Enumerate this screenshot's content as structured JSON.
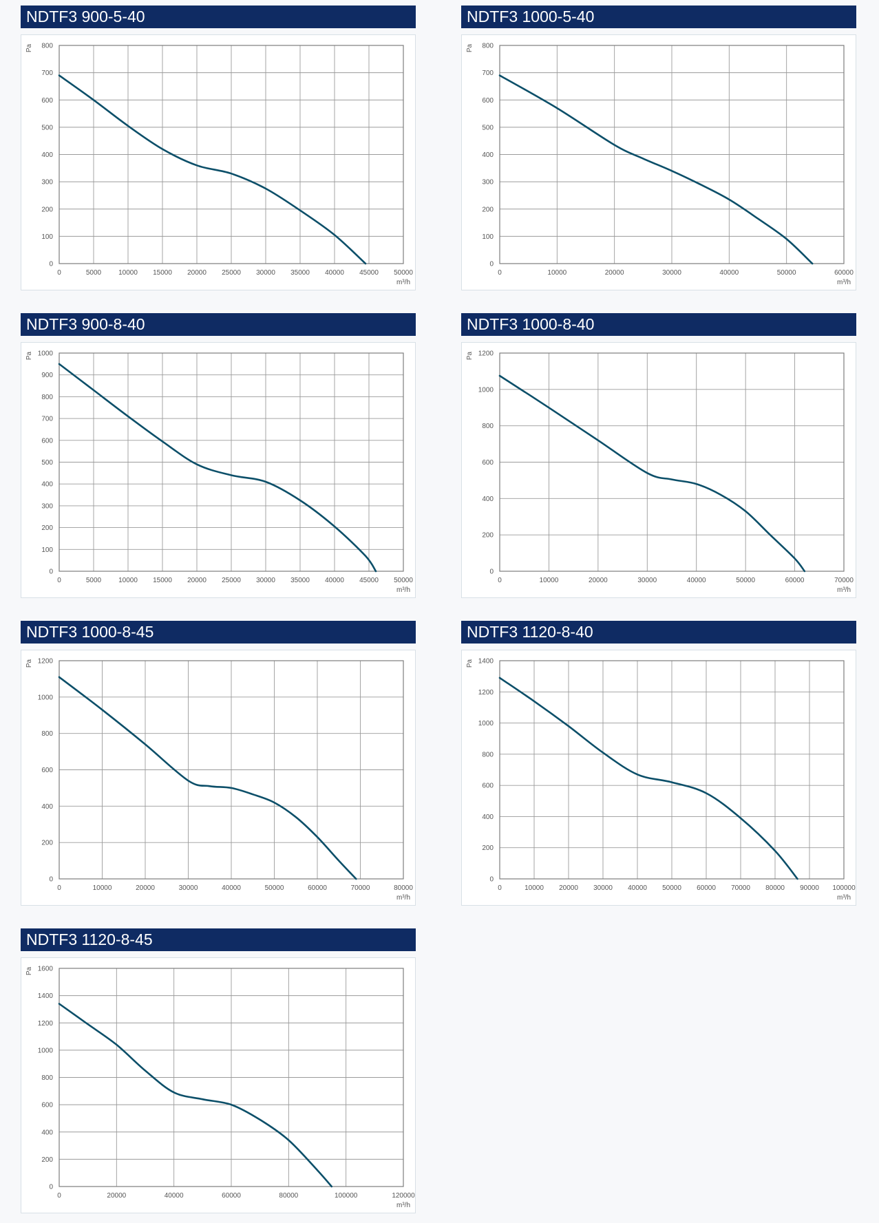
{
  "colors": {
    "header_bg": "#0f2b63",
    "curve": "#0c4f69",
    "grid": "#9a9a9a",
    "tick_text": "#555555"
  },
  "chart_data": [
    {
      "type": "line",
      "title": "NDTF3 900-5-40",
      "ylabel": "Pa",
      "xunit": "m³/h",
      "xlim": [
        0,
        50000
      ],
      "xticks": [
        0,
        5000,
        10000,
        15000,
        20000,
        25000,
        30000,
        35000,
        40000,
        45000,
        50000
      ],
      "ylim": [
        0,
        800
      ],
      "yticks": [
        0,
        100,
        200,
        300,
        400,
        500,
        600,
        700,
        800
      ],
      "grid": true,
      "series": [
        {
          "x": [
            0,
            5000,
            10000,
            15000,
            20000,
            25000,
            30000,
            35000,
            40000,
            44500
          ],
          "y": [
            690,
            600,
            505,
            420,
            360,
            330,
            275,
            195,
            105,
            0
          ]
        }
      ]
    },
    {
      "type": "line",
      "title": "NDTF3 1000-5-40",
      "ylabel": "Pa",
      "xunit": "m³/h",
      "xlim": [
        0,
        60000
      ],
      "xticks": [
        0,
        10000,
        20000,
        30000,
        40000,
        50000,
        60000
      ],
      "ylim": [
        0,
        800
      ],
      "yticks": [
        0,
        100,
        200,
        300,
        400,
        500,
        600,
        700,
        800
      ],
      "grid": true,
      "series": [
        {
          "x": [
            0,
            10000,
            20000,
            25000,
            30000,
            35000,
            40000,
            45000,
            50000,
            54500
          ],
          "y": [
            690,
            570,
            435,
            385,
            340,
            290,
            235,
            165,
            90,
            0
          ]
        }
      ]
    },
    {
      "type": "line",
      "title": "NDTF3 900-8-40",
      "ylabel": "Pa",
      "xunit": "m³/h",
      "xlim": [
        0,
        50000
      ],
      "xticks": [
        0,
        5000,
        10000,
        15000,
        20000,
        25000,
        30000,
        35000,
        40000,
        45000,
        50000
      ],
      "ylim": [
        0,
        1000
      ],
      "yticks": [
        0,
        100,
        200,
        300,
        400,
        500,
        600,
        700,
        800,
        900,
        1000
      ],
      "grid": true,
      "series": [
        {
          "x": [
            0,
            5000,
            10000,
            15000,
            20000,
            25000,
            30000,
            35000,
            40000,
            44500,
            46000
          ],
          "y": [
            950,
            830,
            710,
            595,
            490,
            440,
            410,
            325,
            205,
            70,
            0
          ]
        }
      ]
    },
    {
      "type": "line",
      "title": "NDTF3 1000-8-40",
      "ylabel": "Pa",
      "xunit": "m³/h",
      "xlim": [
        0,
        70000
      ],
      "xticks": [
        0,
        10000,
        20000,
        30000,
        40000,
        50000,
        60000,
        70000
      ],
      "ylim": [
        0,
        1200
      ],
      "yticks": [
        0,
        200,
        400,
        600,
        800,
        1000,
        1200
      ],
      "grid": true,
      "series": [
        {
          "x": [
            0,
            10000,
            20000,
            30000,
            35000,
            40000,
            45000,
            50000,
            55000,
            60000,
            62000
          ],
          "y": [
            1075,
            900,
            720,
            540,
            505,
            480,
            420,
            330,
            200,
            70,
            0
          ]
        }
      ]
    },
    {
      "type": "line",
      "title": "NDTF3 1000-8-45",
      "ylabel": "Pa",
      "xunit": "m³/h",
      "xlim": [
        0,
        80000
      ],
      "xticks": [
        0,
        10000,
        20000,
        30000,
        40000,
        50000,
        60000,
        70000,
        80000
      ],
      "ylim": [
        0,
        1200
      ],
      "yticks": [
        0,
        200,
        400,
        600,
        800,
        1000,
        1200
      ],
      "grid": true,
      "series": [
        {
          "x": [
            0,
            10000,
            20000,
            30000,
            35000,
            40000,
            45000,
            50000,
            55000,
            60000,
            65000,
            69000
          ],
          "y": [
            1110,
            930,
            740,
            540,
            510,
            500,
            465,
            420,
            340,
            230,
            100,
            0
          ]
        }
      ]
    },
    {
      "type": "line",
      "title": "NDTF3 1120-8-40",
      "ylabel": "Pa",
      "xunit": "m³/h",
      "xlim": [
        0,
        100000
      ],
      "xticks": [
        0,
        10000,
        20000,
        30000,
        40000,
        50000,
        60000,
        70000,
        80000,
        90000,
        100000
      ],
      "ylim": [
        0,
        1400
      ],
      "yticks": [
        0,
        200,
        400,
        600,
        800,
        1000,
        1200,
        1400
      ],
      "grid": true,
      "series": [
        {
          "x": [
            0,
            10000,
            20000,
            30000,
            40000,
            50000,
            60000,
            70000,
            80000,
            86500
          ],
          "y": [
            1290,
            1140,
            980,
            810,
            670,
            620,
            550,
            390,
            180,
            0
          ]
        }
      ]
    },
    {
      "type": "line",
      "title": "NDTF3 1120-8-45",
      "ylabel": "Pa",
      "xunit": "m³/h",
      "xlim": [
        0,
        120000
      ],
      "xticks": [
        0,
        20000,
        40000,
        60000,
        80000,
        100000,
        120000
      ],
      "ylim": [
        0,
        1600
      ],
      "yticks": [
        0,
        200,
        400,
        600,
        800,
        1000,
        1200,
        1400,
        1600
      ],
      "grid": true,
      "series": [
        {
          "x": [
            0,
            10000,
            20000,
            30000,
            40000,
            50000,
            60000,
            70000,
            80000,
            90000,
            95000
          ],
          "y": [
            1340,
            1190,
            1040,
            850,
            690,
            640,
            600,
            490,
            340,
            120,
            0
          ]
        }
      ]
    }
  ]
}
